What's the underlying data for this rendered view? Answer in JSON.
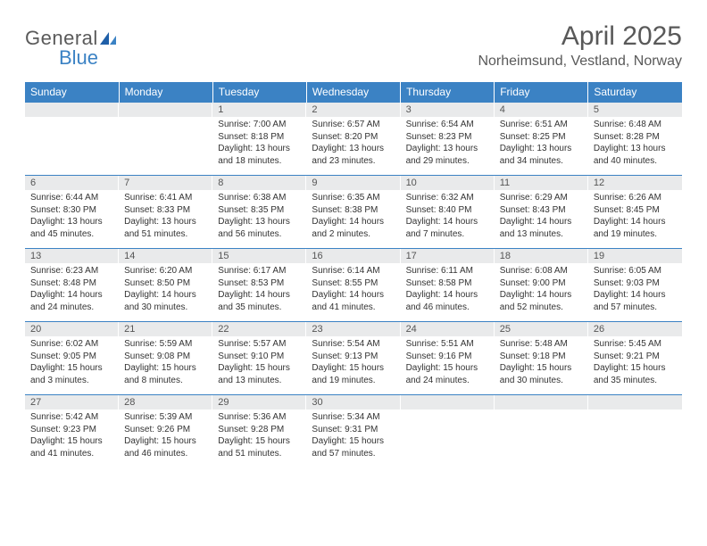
{
  "logo": {
    "text1": "General",
    "text2": "Blue"
  },
  "title": "April 2025",
  "location": "Norheimsund, Vestland, Norway",
  "colors": {
    "header_bg": "#3b82c4",
    "header_text": "#ffffff",
    "daynum_bg": "#e9eaeb",
    "row_border": "#3b82c4",
    "text": "#333333",
    "title_text": "#595959"
  },
  "weekdays": [
    "Sunday",
    "Monday",
    "Tuesday",
    "Wednesday",
    "Thursday",
    "Friday",
    "Saturday"
  ],
  "weeks": [
    [
      {
        "day": "",
        "sunrise": "",
        "sunset": "",
        "daylight": ""
      },
      {
        "day": "",
        "sunrise": "",
        "sunset": "",
        "daylight": ""
      },
      {
        "day": "1",
        "sunrise": "Sunrise: 7:00 AM",
        "sunset": "Sunset: 8:18 PM",
        "daylight": "Daylight: 13 hours and 18 minutes."
      },
      {
        "day": "2",
        "sunrise": "Sunrise: 6:57 AM",
        "sunset": "Sunset: 8:20 PM",
        "daylight": "Daylight: 13 hours and 23 minutes."
      },
      {
        "day": "3",
        "sunrise": "Sunrise: 6:54 AM",
        "sunset": "Sunset: 8:23 PM",
        "daylight": "Daylight: 13 hours and 29 minutes."
      },
      {
        "day": "4",
        "sunrise": "Sunrise: 6:51 AM",
        "sunset": "Sunset: 8:25 PM",
        "daylight": "Daylight: 13 hours and 34 minutes."
      },
      {
        "day": "5",
        "sunrise": "Sunrise: 6:48 AM",
        "sunset": "Sunset: 8:28 PM",
        "daylight": "Daylight: 13 hours and 40 minutes."
      }
    ],
    [
      {
        "day": "6",
        "sunrise": "Sunrise: 6:44 AM",
        "sunset": "Sunset: 8:30 PM",
        "daylight": "Daylight: 13 hours and 45 minutes."
      },
      {
        "day": "7",
        "sunrise": "Sunrise: 6:41 AM",
        "sunset": "Sunset: 8:33 PM",
        "daylight": "Daylight: 13 hours and 51 minutes."
      },
      {
        "day": "8",
        "sunrise": "Sunrise: 6:38 AM",
        "sunset": "Sunset: 8:35 PM",
        "daylight": "Daylight: 13 hours and 56 minutes."
      },
      {
        "day": "9",
        "sunrise": "Sunrise: 6:35 AM",
        "sunset": "Sunset: 8:38 PM",
        "daylight": "Daylight: 14 hours and 2 minutes."
      },
      {
        "day": "10",
        "sunrise": "Sunrise: 6:32 AM",
        "sunset": "Sunset: 8:40 PM",
        "daylight": "Daylight: 14 hours and 7 minutes."
      },
      {
        "day": "11",
        "sunrise": "Sunrise: 6:29 AM",
        "sunset": "Sunset: 8:43 PM",
        "daylight": "Daylight: 14 hours and 13 minutes."
      },
      {
        "day": "12",
        "sunrise": "Sunrise: 6:26 AM",
        "sunset": "Sunset: 8:45 PM",
        "daylight": "Daylight: 14 hours and 19 minutes."
      }
    ],
    [
      {
        "day": "13",
        "sunrise": "Sunrise: 6:23 AM",
        "sunset": "Sunset: 8:48 PM",
        "daylight": "Daylight: 14 hours and 24 minutes."
      },
      {
        "day": "14",
        "sunrise": "Sunrise: 6:20 AM",
        "sunset": "Sunset: 8:50 PM",
        "daylight": "Daylight: 14 hours and 30 minutes."
      },
      {
        "day": "15",
        "sunrise": "Sunrise: 6:17 AM",
        "sunset": "Sunset: 8:53 PM",
        "daylight": "Daylight: 14 hours and 35 minutes."
      },
      {
        "day": "16",
        "sunrise": "Sunrise: 6:14 AM",
        "sunset": "Sunset: 8:55 PM",
        "daylight": "Daylight: 14 hours and 41 minutes."
      },
      {
        "day": "17",
        "sunrise": "Sunrise: 6:11 AM",
        "sunset": "Sunset: 8:58 PM",
        "daylight": "Daylight: 14 hours and 46 minutes."
      },
      {
        "day": "18",
        "sunrise": "Sunrise: 6:08 AM",
        "sunset": "Sunset: 9:00 PM",
        "daylight": "Daylight: 14 hours and 52 minutes."
      },
      {
        "day": "19",
        "sunrise": "Sunrise: 6:05 AM",
        "sunset": "Sunset: 9:03 PM",
        "daylight": "Daylight: 14 hours and 57 minutes."
      }
    ],
    [
      {
        "day": "20",
        "sunrise": "Sunrise: 6:02 AM",
        "sunset": "Sunset: 9:05 PM",
        "daylight": "Daylight: 15 hours and 3 minutes."
      },
      {
        "day": "21",
        "sunrise": "Sunrise: 5:59 AM",
        "sunset": "Sunset: 9:08 PM",
        "daylight": "Daylight: 15 hours and 8 minutes."
      },
      {
        "day": "22",
        "sunrise": "Sunrise: 5:57 AM",
        "sunset": "Sunset: 9:10 PM",
        "daylight": "Daylight: 15 hours and 13 minutes."
      },
      {
        "day": "23",
        "sunrise": "Sunrise: 5:54 AM",
        "sunset": "Sunset: 9:13 PM",
        "daylight": "Daylight: 15 hours and 19 minutes."
      },
      {
        "day": "24",
        "sunrise": "Sunrise: 5:51 AM",
        "sunset": "Sunset: 9:16 PM",
        "daylight": "Daylight: 15 hours and 24 minutes."
      },
      {
        "day": "25",
        "sunrise": "Sunrise: 5:48 AM",
        "sunset": "Sunset: 9:18 PM",
        "daylight": "Daylight: 15 hours and 30 minutes."
      },
      {
        "day": "26",
        "sunrise": "Sunrise: 5:45 AM",
        "sunset": "Sunset: 9:21 PM",
        "daylight": "Daylight: 15 hours and 35 minutes."
      }
    ],
    [
      {
        "day": "27",
        "sunrise": "Sunrise: 5:42 AM",
        "sunset": "Sunset: 9:23 PM",
        "daylight": "Daylight: 15 hours and 41 minutes."
      },
      {
        "day": "28",
        "sunrise": "Sunrise: 5:39 AM",
        "sunset": "Sunset: 9:26 PM",
        "daylight": "Daylight: 15 hours and 46 minutes."
      },
      {
        "day": "29",
        "sunrise": "Sunrise: 5:36 AM",
        "sunset": "Sunset: 9:28 PM",
        "daylight": "Daylight: 15 hours and 51 minutes."
      },
      {
        "day": "30",
        "sunrise": "Sunrise: 5:34 AM",
        "sunset": "Sunset: 9:31 PM",
        "daylight": "Daylight: 15 hours and 57 minutes."
      },
      {
        "day": "",
        "sunrise": "",
        "sunset": "",
        "daylight": ""
      },
      {
        "day": "",
        "sunrise": "",
        "sunset": "",
        "daylight": ""
      },
      {
        "day": "",
        "sunrise": "",
        "sunset": "",
        "daylight": ""
      }
    ]
  ]
}
